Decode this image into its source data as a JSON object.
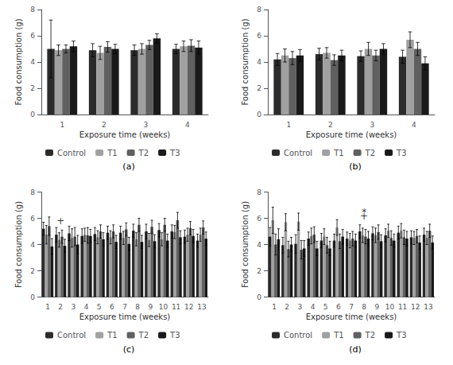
{
  "chart_data": [
    {
      "type": "bar",
      "title": "(a)",
      "xlabel": "Exposure time (weeks)",
      "ylabel": "Food consumption (g)",
      "categories": [
        1,
        2,
        3,
        4
      ],
      "series": [
        {
          "name": "Control",
          "color": "#2b2b2b",
          "values": [
            5.0,
            4.9,
            4.9,
            5.0
          ],
          "errors": [
            2.2,
            0.5,
            0.4,
            0.35
          ]
        },
        {
          "name": "T1",
          "color": "#a0a0a0",
          "values": [
            4.9,
            4.7,
            5.0,
            5.2
          ],
          "errors": [
            0.4,
            0.5,
            0.4,
            0.4
          ]
        },
        {
          "name": "T2",
          "color": "#606060",
          "values": [
            5.0,
            5.15,
            5.3,
            5.25
          ],
          "errors": [
            0.3,
            0.4,
            0.35,
            0.45
          ]
        },
        {
          "name": "T3",
          "color": "#1a1a1a",
          "values": [
            5.2,
            5.0,
            5.8,
            5.1
          ],
          "errors": [
            0.4,
            0.35,
            0.35,
            0.5
          ]
        }
      ],
      "ylim": [
        0,
        8
      ],
      "yticks": [
        0,
        2,
        4,
        6,
        8
      ],
      "grid": false,
      "legend": "bottom"
    },
    {
      "type": "bar",
      "title": "(b)",
      "xlabel": "Exposure time (weeks)",
      "ylabel": "Food consumption (g)",
      "categories": [
        1,
        2,
        3,
        4
      ],
      "series": [
        {
          "name": "Control",
          "color": "#2b2b2b",
          "values": [
            4.2,
            4.6,
            4.45,
            4.4
          ],
          "errors": [
            0.45,
            0.45,
            0.4,
            0.5
          ]
        },
        {
          "name": "T1",
          "color": "#a0a0a0",
          "values": [
            4.5,
            4.7,
            5.0,
            5.7
          ],
          "errors": [
            0.5,
            0.4,
            0.5,
            0.6
          ]
        },
        {
          "name": "T2",
          "color": "#606060",
          "values": [
            4.3,
            4.15,
            4.5,
            5.0
          ],
          "errors": [
            0.5,
            0.4,
            0.4,
            0.5
          ]
        },
        {
          "name": "T3",
          "color": "#1a1a1a",
          "values": [
            4.5,
            4.5,
            5.0,
            3.9
          ],
          "errors": [
            0.45,
            0.4,
            0.4,
            0.5
          ]
        }
      ],
      "ylim": [
        0,
        8
      ],
      "yticks": [
        0,
        2,
        4,
        6,
        8
      ],
      "grid": false,
      "legend": "bottom"
    },
    {
      "type": "bar",
      "title": "(c)",
      "xlabel": "Exposure time (weeks)",
      "ylabel": "Food consumption (g)",
      "categories": [
        1,
        2,
        3,
        4,
        5,
        6,
        7,
        8,
        9,
        10,
        11,
        12,
        13
      ],
      "series": [
        {
          "name": "Control",
          "color": "#2b2b2b",
          "values": [
            5.2,
            4.75,
            4.85,
            4.65,
            4.8,
            4.9,
            4.9,
            5.05,
            5.0,
            5.1,
            5.0,
            4.6,
            4.3
          ],
          "errors": [
            0.5,
            0.55,
            0.55,
            0.55,
            0.5,
            0.5,
            0.5,
            0.5,
            0.55,
            0.5,
            0.5,
            0.5,
            0.5
          ]
        },
        {
          "name": "T1",
          "color": "#a0a0a0",
          "values": [
            4.75,
            4.35,
            4.5,
            4.75,
            4.55,
            4.55,
            4.5,
            4.4,
            4.35,
            4.4,
            4.95,
            4.75,
            4.75
          ],
          "errors": [
            0.7,
            0.55,
            0.7,
            0.5,
            0.5,
            0.5,
            0.5,
            0.5,
            0.5,
            0.5,
            0.5,
            0.5,
            0.5
          ]
        },
        {
          "name": "T2",
          "color": "#606060",
          "values": [
            5.4,
            4.6,
            4.6,
            4.7,
            5.0,
            5.0,
            5.15,
            5.5,
            5.35,
            5.5,
            5.85,
            5.25,
            5.3
          ],
          "errors": [
            0.7,
            0.5,
            0.7,
            0.6,
            0.5,
            0.5,
            0.5,
            0.5,
            0.5,
            0.5,
            0.6,
            0.5,
            0.5
          ]
        },
        {
          "name": "T3",
          "color": "#1a1a1a",
          "values": [
            3.85,
            3.9,
            4.0,
            4.65,
            4.4,
            4.2,
            4.05,
            4.2,
            4.25,
            4.3,
            4.55,
            4.65,
            4.45
          ],
          "errors": [
            0.6,
            0.5,
            0.7,
            0.5,
            0.5,
            0.5,
            0.5,
            0.5,
            0.5,
            0.5,
            0.5,
            0.5,
            0.5
          ]
        }
      ],
      "ylim": [
        0,
        8
      ],
      "yticks": [
        0,
        2,
        4,
        6,
        8
      ],
      "grid": false,
      "legend": "bottom",
      "annotations": [
        {
          "text": "+",
          "x": 2,
          "y": 5.35
        }
      ]
    },
    {
      "type": "bar",
      "title": "(d)",
      "xlabel": "Exposure time (weeks)",
      "ylabel": "Food consumption (g)",
      "categories": [
        1,
        2,
        3,
        4,
        5,
        6,
        7,
        8,
        9,
        10,
        11,
        12,
        13
      ],
      "series": [
        {
          "name": "Control",
          "color": "#2b2b2b",
          "values": [
            4.6,
            3.95,
            4.05,
            4.45,
            4.3,
            4.3,
            4.45,
            5.0,
            4.85,
            4.7,
            4.9,
            4.55,
            4.75
          ],
          "errors": [
            0.7,
            0.6,
            0.7,
            0.5,
            0.55,
            0.5,
            0.5,
            0.5,
            0.5,
            0.5,
            0.5,
            0.5,
            0.5
          ]
        },
        {
          "name": "T1",
          "color": "#a0a0a0",
          "values": [
            5.85,
            5.7,
            5.75,
            4.65,
            4.6,
            5.3,
            4.3,
            4.7,
            4.7,
            5.05,
            5.05,
            4.5,
            4.5
          ],
          "errors": [
            1.0,
            0.65,
            0.65,
            0.6,
            0.6,
            0.6,
            0.55,
            0.55,
            0.55,
            0.5,
            0.55,
            0.5,
            0.5
          ]
        },
        {
          "name": "T2",
          "color": "#606060",
          "values": [
            4.0,
            3.65,
            3.6,
            4.75,
            3.95,
            4.25,
            4.45,
            4.6,
            4.95,
            4.5,
            4.55,
            4.65,
            5.05
          ],
          "errors": [
            0.8,
            0.6,
            0.7,
            0.6,
            0.6,
            0.55,
            0.55,
            0.55,
            0.55,
            0.55,
            0.55,
            0.5,
            0.5
          ]
        },
        {
          "name": "T3",
          "color": "#1a1a1a",
          "values": [
            4.4,
            4.0,
            3.7,
            3.7,
            3.7,
            4.6,
            4.3,
            4.45,
            4.25,
            4.3,
            4.45,
            4.15,
            4.15
          ],
          "errors": [
            0.8,
            0.55,
            0.6,
            0.55,
            0.55,
            0.55,
            0.5,
            0.55,
            0.5,
            0.5,
            0.55,
            0.5,
            0.5
          ]
        }
      ],
      "ylim": [
        0,
        8
      ],
      "yticks": [
        0,
        2,
        4,
        6,
        8
      ],
      "grid": false,
      "legend": "bottom",
      "annotations": [
        {
          "text": "+",
          "x": 8,
          "y": 5.7
        },
        {
          "text": "*",
          "x": 8,
          "y": 6.05
        }
      ]
    }
  ]
}
